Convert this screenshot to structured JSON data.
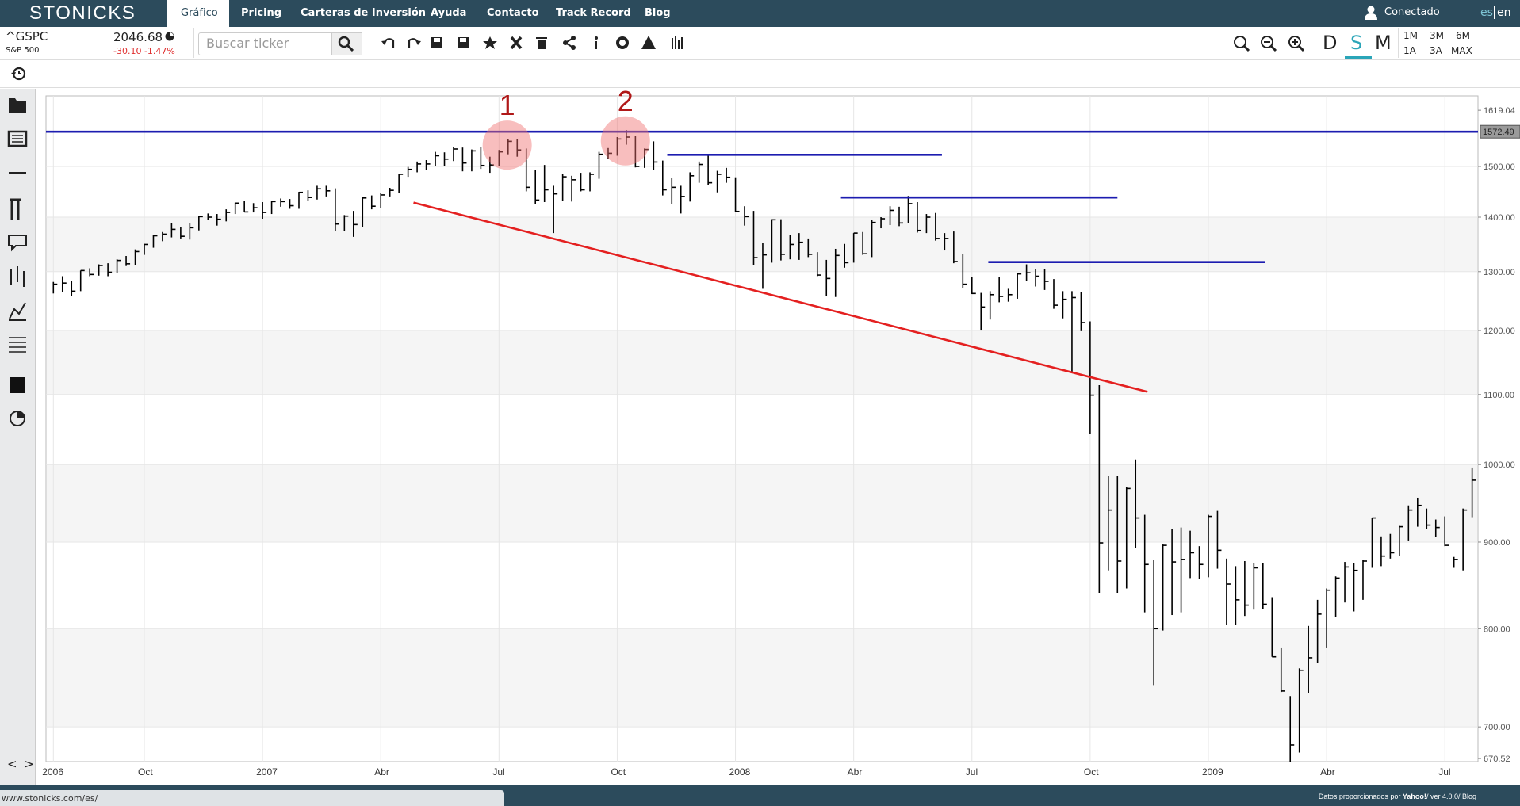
{
  "header": {
    "logo": "STONICKS",
    "nav": [
      "Gráfico",
      "Pricing",
      "Carteras de Inversión",
      "Ayuda",
      "Contacto",
      "Track Record",
      "Blog"
    ],
    "user": "Conectado",
    "lang": [
      "es",
      "en"
    ]
  },
  "ticker": {
    "symbol": "^GSPC",
    "name": "S&P 500",
    "price": "2046.68",
    "change": "-30.10 -1.47%"
  },
  "search_placeholder": "Buscar ticker",
  "periods": [
    "D",
    "S",
    "M"
  ],
  "ranges": [
    "1M",
    "3M",
    "6M",
    "1A",
    "3A",
    "MAX"
  ],
  "sidebar_nav": "< >",
  "footer": {
    "url": "www.stonicks.com/es/",
    "credit": "Datos proporcionados por",
    "source": "Yahoo!",
    "version": "/ ver 4.0.0/",
    "blog": "Blog"
  },
  "chart_data": {
    "type": "ohlc",
    "color": "#000000",
    "log": true,
    "grid": true,
    "categories": [
      "2006",
      null,
      null,
      null,
      null,
      null,
      null,
      null,
      null,
      null,
      "Oct",
      null,
      null,
      null,
      null,
      null,
      null,
      null,
      null,
      null,
      null,
      null,
      null,
      "2007",
      null,
      null,
      null,
      null,
      null,
      null,
      null,
      null,
      null,
      null,
      null,
      null,
      "Abr",
      null,
      null,
      null,
      null,
      null,
      null,
      null,
      null,
      null,
      null,
      null,
      null,
      "Jul",
      null,
      null,
      null,
      null,
      null,
      null,
      null,
      null,
      null,
      null,
      null,
      null,
      "Oct",
      null,
      null,
      null,
      null,
      null,
      null,
      null,
      null,
      null,
      null,
      null,
      null,
      "2008",
      null,
      null,
      null,
      null,
      null,
      null,
      null,
      null,
      null,
      null,
      null,
      null,
      "Abr",
      null,
      null,
      null,
      null,
      null,
      null,
      null,
      null,
      null,
      null,
      null,
      null,
      "Jul",
      null,
      null,
      null,
      null,
      null,
      null,
      null,
      null,
      null,
      null,
      null,
      null,
      "Oct",
      null,
      null,
      null,
      null,
      null,
      null,
      null,
      null,
      null,
      null,
      null,
      null,
      "2009",
      null,
      null,
      null,
      null,
      null,
      null,
      null,
      null,
      null,
      null,
      null,
      null,
      "Abr",
      null,
      null,
      null,
      null,
      null,
      null,
      null,
      null,
      null,
      null,
      null,
      null,
      "Jul",
      null,
      null,
      null
    ],
    "close": [
      1278,
      1280,
      1266,
      1302,
      1295,
      1311,
      1299,
      1320,
      1314,
      1336,
      1349,
      1365,
      1368,
      1377,
      1364,
      1380,
      1401,
      1400,
      1396,
      1409,
      1427,
      1410,
      1418,
      1409,
      1430,
      1430,
      1422,
      1448,
      1438,
      1455,
      1451,
      1387,
      1402,
      1386,
      1437,
      1421,
      1443,
      1452,
      1484,
      1494,
      1505,
      1505,
      1522,
      1515,
      1536,
      1507,
      1532,
      1502,
      1503,
      1530,
      1552,
      1534,
      1458,
      1433,
      1453,
      1445,
      1479,
      1473,
      1453,
      1484,
      1525,
      1527,
      1557,
      1561,
      1500,
      1535,
      1509,
      1453,
      1458,
      1440,
      1481,
      1504,
      1467,
      1484,
      1478,
      1411,
      1401,
      1325,
      1330,
      1395,
      1331,
      1349,
      1353,
      1331,
      1294,
      1288,
      1329,
      1316,
      1370,
      1332,
      1390,
      1397,
      1413,
      1389,
      1426,
      1375,
      1400,
      1360,
      1360,
      1318,
      1278,
      1262,
      1239,
      1260,
      1257,
      1260,
      1296,
      1298,
      1292,
      1283,
      1242,
      1252,
      1255,
      1213,
      1099,
      899,
      940,
      877,
      968,
      930,
      873,
      800,
      896,
      876,
      879,
      887,
      873,
      932,
      890,
      850,
      832,
      826,
      869,
      827,
      770,
      735,
      683,
      756,
      769,
      816,
      843,
      857,
      870,
      866,
      877,
      930,
      883,
      887,
      919,
      940,
      946,
      921,
      918,
      896,
      879,
      940,
      979
    ],
    "high": [
      1282,
      1292,
      1283,
      1302,
      1306,
      1313,
      1315,
      1322,
      1328,
      1340,
      1350,
      1366,
      1372,
      1389,
      1382,
      1389,
      1403,
      1407,
      1406,
      1415,
      1428,
      1432,
      1427,
      1429,
      1432,
      1436,
      1435,
      1449,
      1452,
      1461,
      1461,
      1456,
      1404,
      1412,
      1439,
      1442,
      1446,
      1457,
      1485,
      1499,
      1510,
      1513,
      1530,
      1529,
      1540,
      1539,
      1535,
      1540,
      1520,
      1534,
      1556,
      1556,
      1537,
      1492,
      1503,
      1461,
      1485,
      1481,
      1487,
      1488,
      1530,
      1538,
      1561,
      1576,
      1563,
      1537,
      1552,
      1512,
      1477,
      1461,
      1488,
      1510,
      1523,
      1491,
      1497,
      1478,
      1421,
      1412,
      1352,
      1396,
      1396,
      1367,
      1370,
      1360,
      1335,
      1321,
      1341,
      1350,
      1370,
      1372,
      1395,
      1400,
      1421,
      1420,
      1441,
      1429,
      1406,
      1408,
      1370,
      1373,
      1331,
      1291,
      1263,
      1266,
      1290,
      1270,
      1298,
      1313,
      1305,
      1304,
      1287,
      1266,
      1266,
      1265,
      1215,
      1114,
      985,
      985,
      970,
      1007,
      934,
      878,
      897,
      916,
      918,
      914,
      895,
      934,
      939,
      880,
      871,
      877,
      875,
      875,
      835,
      779,
      730,
      758,
      803,
      832,
      845,
      859,
      876,
      875,
      878,
      930,
      907,
      910,
      920,
      946,
      956,
      942,
      928,
      932,
      882,
      942,
      996
    ],
    "low": [
      1262,
      1264,
      1257,
      1266,
      1292,
      1293,
      1292,
      1298,
      1310,
      1312,
      1330,
      1343,
      1355,
      1362,
      1360,
      1358,
      1375,
      1394,
      1384,
      1392,
      1406,
      1410,
      1409,
      1397,
      1406,
      1420,
      1416,
      1416,
      1431,
      1434,
      1440,
      1374,
      1374,
      1363,
      1382,
      1415,
      1418,
      1440,
      1446,
      1479,
      1488,
      1492,
      1500,
      1500,
      1511,
      1490,
      1490,
      1495,
      1487,
      1500,
      1525,
      1520,
      1450,
      1425,
      1429,
      1370,
      1432,
      1430,
      1450,
      1450,
      1475,
      1515,
      1522,
      1545,
      1498,
      1497,
      1492,
      1442,
      1425,
      1407,
      1430,
      1467,
      1462,
      1448,
      1467,
      1410,
      1384,
      1312,
      1270,
      1316,
      1320,
      1322,
      1321,
      1326,
      1292,
      1257,
      1256,
      1307,
      1316,
      1330,
      1326,
      1379,
      1385,
      1383,
      1389,
      1371,
      1370,
      1356,
      1338,
      1315,
      1272,
      1261,
      1200,
      1218,
      1247,
      1248,
      1253,
      1284,
      1274,
      1268,
      1236,
      1220,
      1133,
      1199,
      1042,
      840,
      866,
      840,
      845,
      893,
      818,
      741,
      798,
      815,
      818,
      857,
      856,
      858,
      868,
      804,
      804,
      814,
      821,
      822,
      770,
      734,
      667,
      676,
      733,
      764,
      779,
      813,
      829,
      819,
      832,
      869,
      871,
      880,
      883,
      902,
      919,
      916,
      906,
      895,
      869,
      866,
      931
    ],
    "ylim": [
      667.7,
      1651
    ],
    "yticks": [
      670.52,
      {
        "value": 700,
        "label": "700.00"
      },
      {
        "value": 800,
        "label": "800.00"
      },
      {
        "value": 900,
        "label": "900.00"
      },
      {
        "value": 1000,
        "label": "1000.00"
      },
      {
        "value": 1100,
        "label": "1100.00"
      },
      {
        "value": 1200,
        "label": "1200.00"
      },
      {
        "value": 1300,
        "label": "1300.00"
      },
      {
        "value": 1400,
        "label": "1400.00"
      },
      {
        "value": 1500,
        "label": "1500.00"
      },
      1619.04
    ],
    "hline": {
      "value": 1572.49,
      "color": "#1c1cb0"
    },
    "segments": [
      {
        "x": [
          67.5,
          97.7
        ],
        "y": [
          1524,
          1524
        ],
        "color": "#1c1cb0"
      },
      {
        "x": [
          86.6,
          117
        ],
        "y": [
          1438,
          1438
        ],
        "color": "#1c1cb0"
      },
      {
        "x": [
          102.8,
          133.2
        ],
        "y": [
          1317,
          1317
        ],
        "color": "#1c1cb0"
      },
      {
        "x": [
          39.6,
          120.3
        ],
        "y": [
          1428,
          1104
        ],
        "color": "#e42020"
      }
    ],
    "markers": [
      {
        "label": "1",
        "x": 49.9,
        "y": 1544,
        "color": "#b01818"
      },
      {
        "label": "2",
        "x": 62.9,
        "y": 1553,
        "color": "#b01818"
      }
    ]
  }
}
